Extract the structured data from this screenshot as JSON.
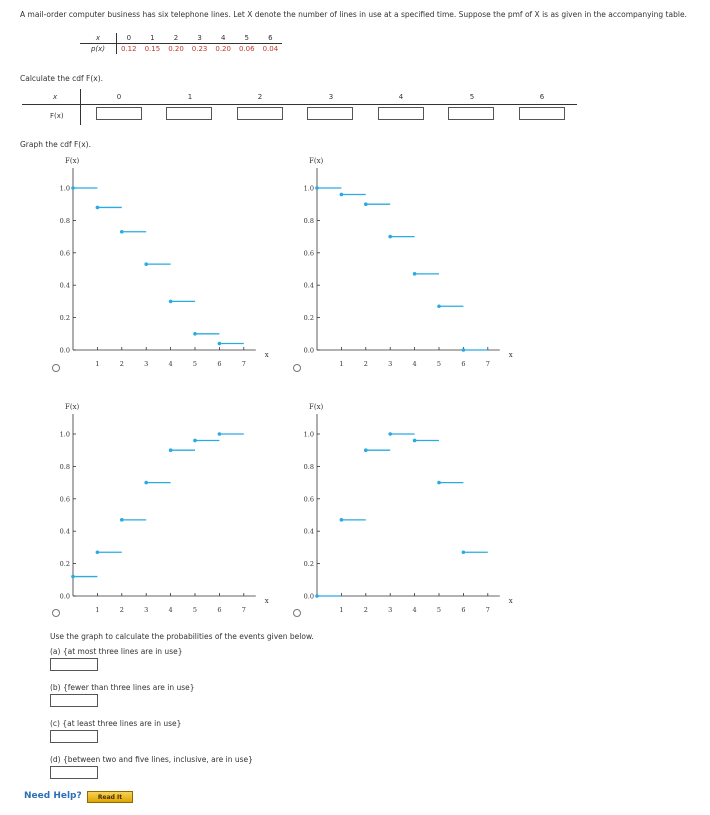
{
  "problem": {
    "statement": "A mail-order computer business has six telephone lines. Let X denote the number of lines in use at a specified time. Suppose the pmf of X is as given in the accompanying table."
  },
  "pmf_table": {
    "x_label": "x",
    "p_label": "p(x)",
    "x_values": [
      "0",
      "1",
      "2",
      "3",
      "4",
      "5",
      "6"
    ],
    "p_values": [
      "0.12",
      "0.15",
      "0.20",
      "0.23",
      "0.20",
      "0.06",
      "0.04"
    ]
  },
  "cdf_prompt": "Calculate the cdf F(x).",
  "cdf_table": {
    "x_label": "x",
    "f_label": "F(x)",
    "headers": [
      "0",
      "1",
      "2",
      "3",
      "4",
      "5",
      "6"
    ]
  },
  "graph_prompt": "Graph the cdf F(x).",
  "chart_data": [
    {
      "type": "line",
      "step": true,
      "ylabel": "F(x)",
      "xlabel": "x",
      "xticks": [
        "1",
        "2",
        "3",
        "4",
        "5",
        "6",
        "7"
      ],
      "yticks": [
        "0.0",
        "0.2",
        "0.4",
        "0.6",
        "0.8",
        "1.0"
      ],
      "xlim": [
        0,
        7
      ],
      "ylim": [
        0,
        1
      ],
      "steps": [
        {
          "x0": 0,
          "x1": 1,
          "y": 1.0
        },
        {
          "x0": 1,
          "x1": 2,
          "y": 0.88
        },
        {
          "x0": 2,
          "x1": 3,
          "y": 0.73
        },
        {
          "x0": 3,
          "x1": 4,
          "y": 0.53
        },
        {
          "x0": 4,
          "x1": 5,
          "y": 0.3
        },
        {
          "x0": 5,
          "x1": 6,
          "y": 0.1
        },
        {
          "x0": 6,
          "x1": 7,
          "y": 0.04
        }
      ]
    },
    {
      "type": "line",
      "step": true,
      "ylabel": "F(x)",
      "xlabel": "x",
      "xticks": [
        "1",
        "2",
        "3",
        "4",
        "5",
        "6",
        "7"
      ],
      "yticks": [
        "0.0",
        "0.2",
        "0.4",
        "0.6",
        "0.8",
        "1.0"
      ],
      "xlim": [
        0,
        7
      ],
      "ylim": [
        0,
        1
      ],
      "steps": [
        {
          "x0": 0,
          "x1": 1,
          "y": 1.0
        },
        {
          "x0": 1,
          "x1": 2,
          "y": 0.96
        },
        {
          "x0": 2,
          "x1": 3,
          "y": 0.9
        },
        {
          "x0": 3,
          "x1": 4,
          "y": 0.7
        },
        {
          "x0": 4,
          "x1": 5,
          "y": 0.47
        },
        {
          "x0": 5,
          "x1": 6,
          "y": 0.27
        },
        {
          "x0": 6,
          "x1": 7,
          "y": 0.0
        }
      ]
    },
    {
      "type": "line",
      "step": true,
      "ylabel": "F(x)",
      "xlabel": "x",
      "xticks": [
        "1",
        "2",
        "3",
        "4",
        "5",
        "6",
        "7"
      ],
      "yticks": [
        "0.0",
        "0.2",
        "0.4",
        "0.6",
        "0.8",
        "1.0"
      ],
      "xlim": [
        0,
        7
      ],
      "ylim": [
        0,
        1
      ],
      "steps": [
        {
          "x0": 0,
          "x1": 1,
          "y": 0.12
        },
        {
          "x0": 1,
          "x1": 2,
          "y": 0.27
        },
        {
          "x0": 2,
          "x1": 3,
          "y": 0.47
        },
        {
          "x0": 3,
          "x1": 4,
          "y": 0.7
        },
        {
          "x0": 4,
          "x1": 5,
          "y": 0.9
        },
        {
          "x0": 5,
          "x1": 6,
          "y": 0.96
        },
        {
          "x0": 6,
          "x1": 7,
          "y": 1.0
        }
      ]
    },
    {
      "type": "line",
      "step": true,
      "ylabel": "F(x)",
      "xlabel": "x",
      "xticks": [
        "1",
        "2",
        "3",
        "4",
        "5",
        "6",
        "7"
      ],
      "yticks": [
        "0.0",
        "0.2",
        "0.4",
        "0.6",
        "0.8",
        "1.0"
      ],
      "xlim": [
        0,
        7
      ],
      "ylim": [
        0,
        1
      ],
      "steps": [
        {
          "x0": 0,
          "x1": 1,
          "y": 0.0
        },
        {
          "x0": 1,
          "x1": 2,
          "y": 0.47
        },
        {
          "x0": 2,
          "x1": 3,
          "y": 0.9
        },
        {
          "x0": 3,
          "x1": 4,
          "y": 1.0
        },
        {
          "x0": 4,
          "x1": 5,
          "y": 0.96
        },
        {
          "x0": 5,
          "x1": 6,
          "y": 0.7
        },
        {
          "x0": 6,
          "x1": 7,
          "y": 0.27
        }
      ]
    }
  ],
  "use_graph_prompt": "Use the graph to calculate the probabilities of the events given below.",
  "questions": [
    {
      "label": "(a) {at most three lines are in use}",
      "value": ""
    },
    {
      "label": "(b) {fewer than three lines are in use}",
      "value": ""
    },
    {
      "label": "(c) {at least three lines are in use}",
      "value": ""
    },
    {
      "label": "(d) {between two and five lines, inclusive, are in use}",
      "value": ""
    }
  ],
  "help": {
    "label": "Need Help?",
    "read_it": "Read It"
  },
  "colors": {
    "step": "#29abe2",
    "axis": "#333333"
  }
}
